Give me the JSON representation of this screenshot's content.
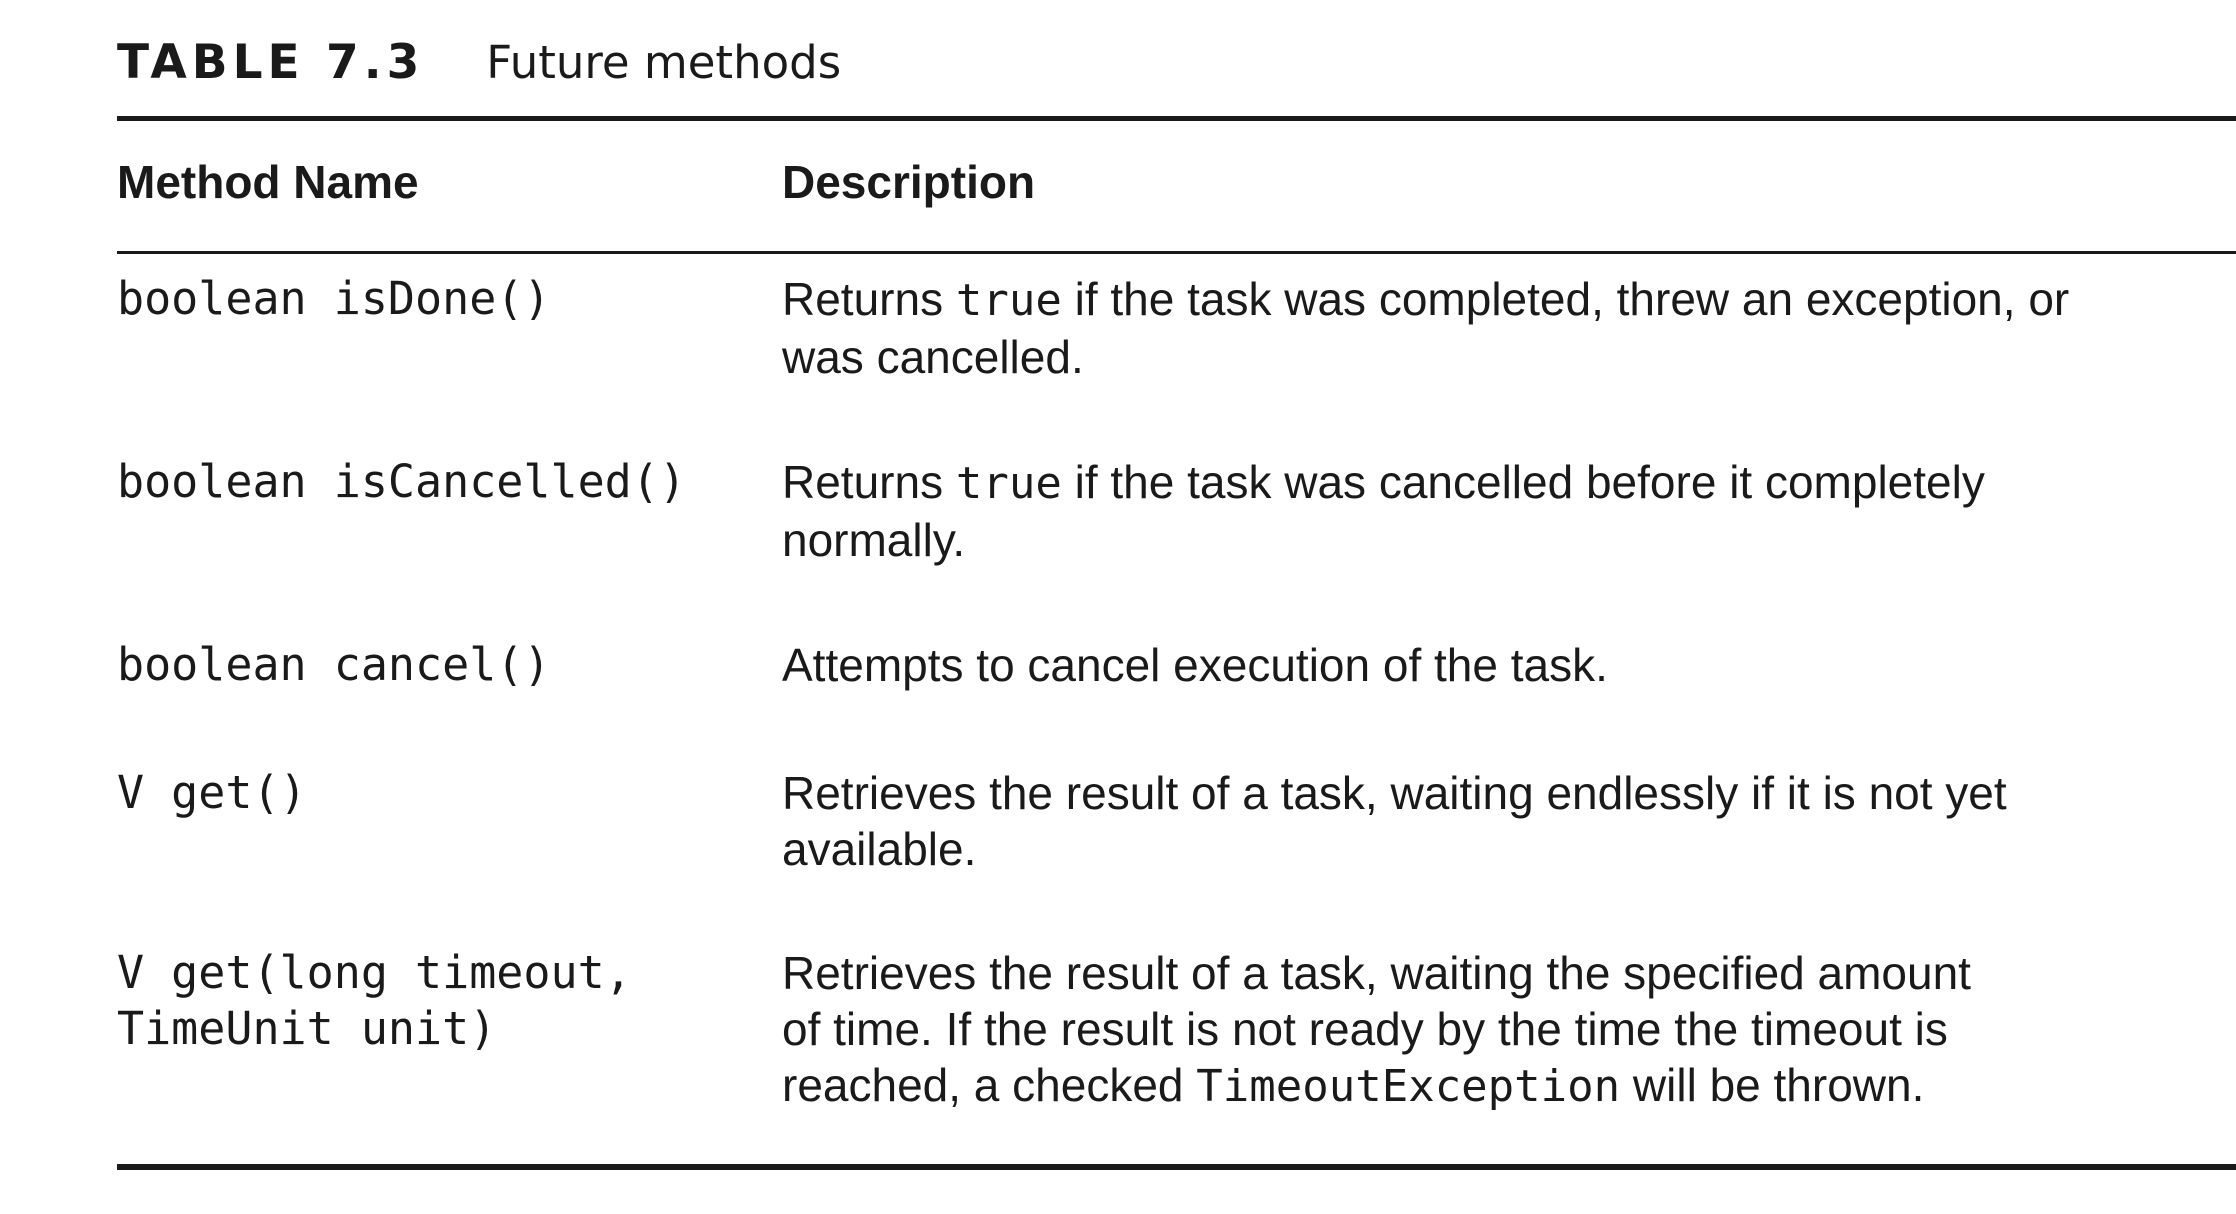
{
  "caption": {
    "label": "TABLE 7.3",
    "title": "Future methods"
  },
  "headers": {
    "method": "Method Name",
    "description": "Description"
  },
  "rows": [
    {
      "method": "boolean isDone()",
      "description": {
        "line1_pre": "Returns ",
        "line1_code": "true",
        "line1_post": " if the task was completed, threw an exception, or",
        "line2": "was cancelled."
      }
    },
    {
      "method": "boolean isCancelled()",
      "description": {
        "line1_pre": "Returns ",
        "line1_code": "true",
        "line1_post": " if the task was cancelled before it completely",
        "line2": "normally."
      }
    },
    {
      "method": "boolean cancel()",
      "description": {
        "line1": "Attempts to cancel execution of the task."
      }
    },
    {
      "method": "V get()",
      "description": {
        "line1": "Retrieves the result of a task, waiting endlessly if it is not yet",
        "line2": "available."
      }
    },
    {
      "method": "V get(long timeout,\nTimeUnit unit)",
      "description": {
        "line1": "Retrieves the result of a task, waiting the specified amount",
        "line2": "of time. If the result is not ready by the time the timeout is",
        "line3_pre": "reached, a checked ",
        "line3_code": "TimeoutException",
        "line3_post": " will be thrown."
      }
    }
  ]
}
